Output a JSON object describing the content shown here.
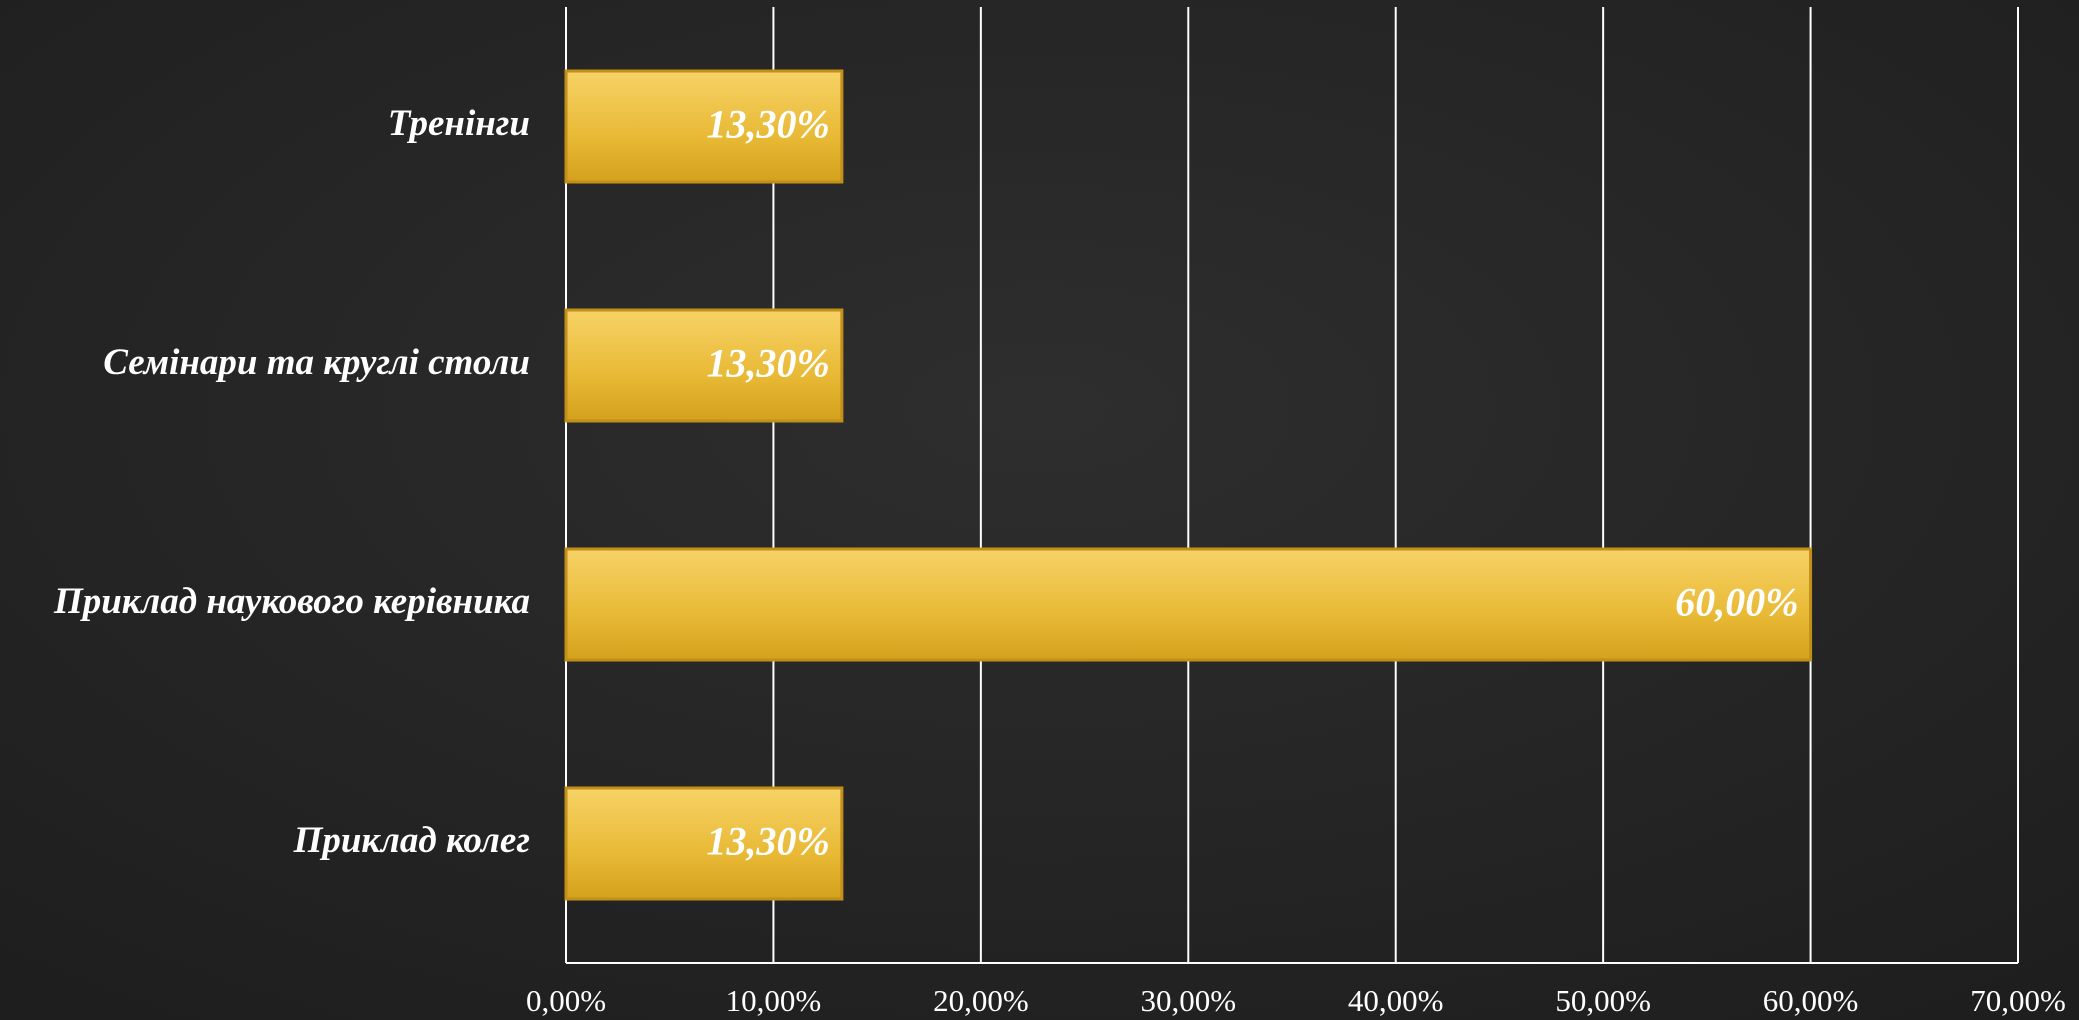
{
  "chart_data": {
    "type": "hbar",
    "categories": [
      "Тренінги",
      "Семінари та круглі столи",
      "Приклад наукового керівника",
      "Приклад колег"
    ],
    "values": [
      13.3,
      13.3,
      60,
      13.3
    ],
    "value_labels": [
      "13,30%",
      "13,30%",
      "60,00%",
      "13,30%"
    ],
    "color": "#e8b935",
    "xlim": [
      0,
      70
    ],
    "xticks": [
      {
        "value": 0,
        "label": "0,00%"
      },
      {
        "value": 10,
        "label": "10,00%"
      },
      {
        "value": 20,
        "label": "20,00%"
      },
      {
        "value": 30,
        "label": "30,00%"
      },
      {
        "value": 40,
        "label": "40,00%"
      },
      {
        "value": 50,
        "label": "50,00%"
      },
      {
        "value": 60,
        "label": "60,00%"
      },
      {
        "value": 70,
        "label": "70,00%"
      }
    ],
    "grid": true
  }
}
